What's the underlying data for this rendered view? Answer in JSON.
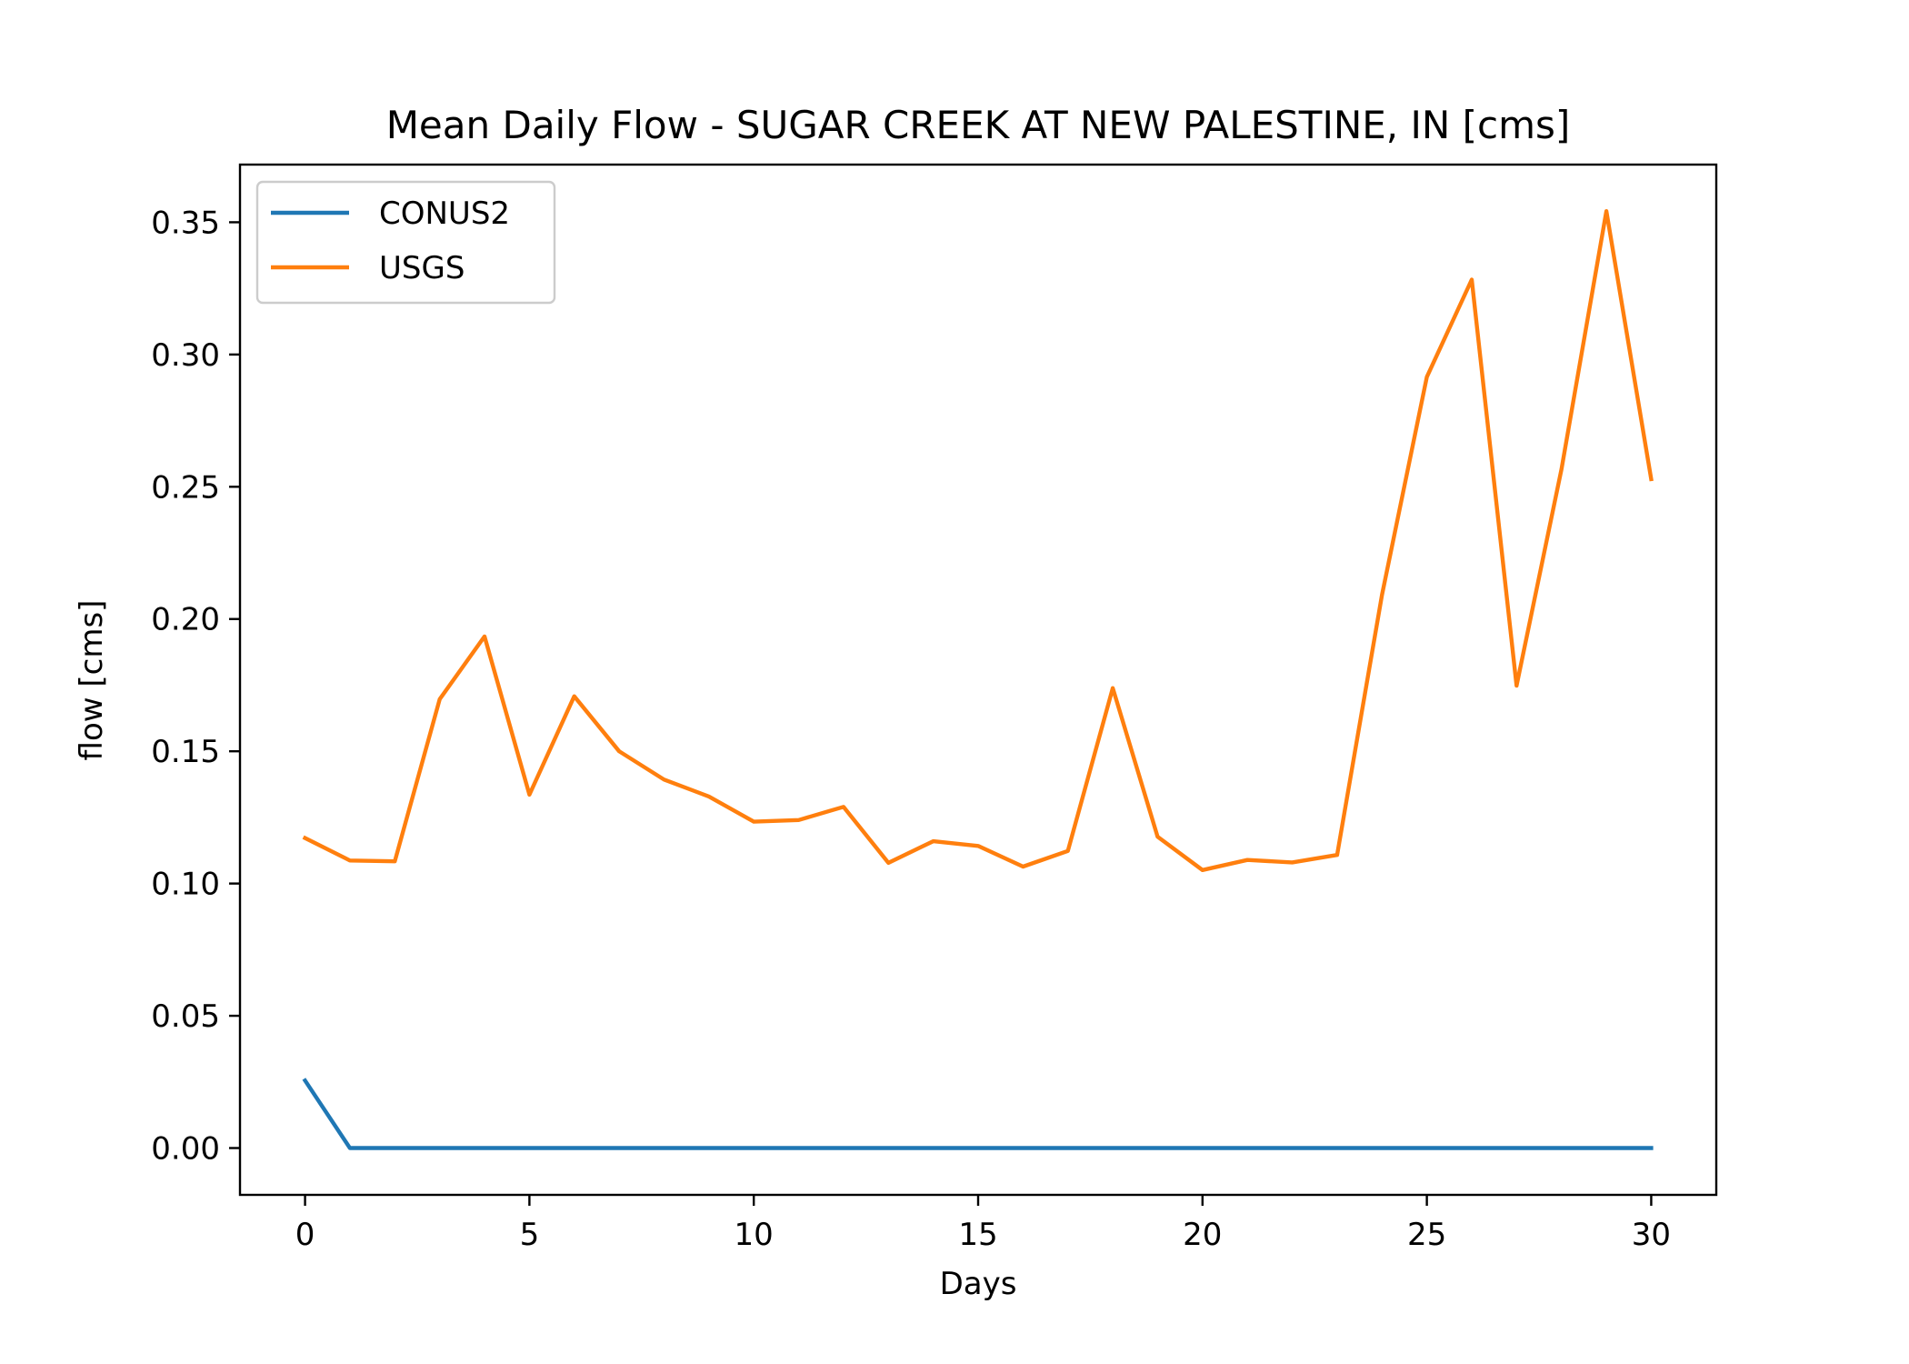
{
  "chart_data": {
    "type": "line",
    "title": "Mean Daily Flow - SUGAR CREEK AT NEW PALESTINE, IN [cms]",
    "xlabel": "Days",
    "ylabel": "flow [cms]",
    "xlim": [
      -1.45,
      31.45
    ],
    "ylim": [
      -0.0177,
      0.3718
    ],
    "xticks": [
      0,
      5,
      10,
      15,
      20,
      25,
      30
    ],
    "xtick_labels": [
      "0",
      "5",
      "10",
      "15",
      "20",
      "25",
      "30"
    ],
    "yticks": [
      0.0,
      0.05,
      0.1,
      0.15,
      0.2,
      0.25,
      0.3,
      0.35
    ],
    "ytick_labels": [
      "0.00",
      "0.05",
      "0.10",
      "0.15",
      "0.20",
      "0.25",
      "0.30",
      "0.35"
    ],
    "grid": false,
    "legend_position": "top-left",
    "x": [
      0,
      1,
      2,
      3,
      4,
      5,
      6,
      7,
      8,
      9,
      10,
      11,
      12,
      13,
      14,
      15,
      16,
      17,
      18,
      19,
      20,
      21,
      22,
      23,
      24,
      25,
      26,
      27,
      28,
      29,
      30
    ],
    "series": [
      {
        "name": "CONUS2",
        "color": "#1f77b4",
        "values": [
          0.0255,
          0,
          0,
          0,
          0,
          0,
          0,
          0,
          0,
          0,
          0,
          0,
          0,
          0,
          0,
          0,
          0,
          0,
          0,
          0,
          0,
          0,
          0,
          0,
          0,
          0,
          0,
          0,
          0,
          0,
          0
        ]
      },
      {
        "name": "USGS",
        "color": "#ff7f0e",
        "values": [
          0.1172,
          0.1087,
          0.1084,
          0.1697,
          0.1934,
          0.1336,
          0.1708,
          0.15,
          0.1393,
          0.1329,
          0.1234,
          0.124,
          0.129,
          0.1078,
          0.116,
          0.1142,
          0.1064,
          0.1123,
          0.1739,
          0.1177,
          0.1051,
          0.1089,
          0.108,
          0.1108,
          0.2092,
          0.2915,
          0.3283,
          0.1748,
          0.2566,
          0.3542,
          0.2529
        ]
      }
    ]
  }
}
